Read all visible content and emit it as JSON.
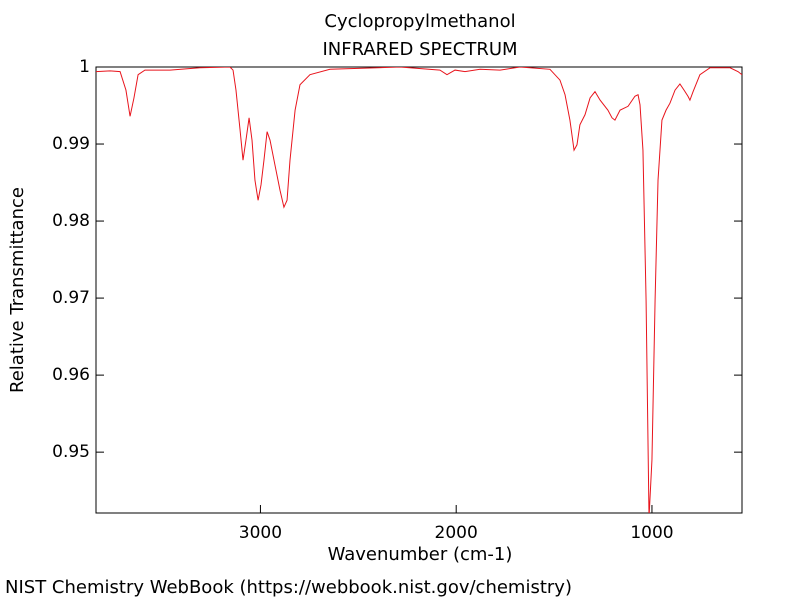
{
  "chart_data": {
    "type": "line",
    "title": "Cyclopropylmethanol",
    "subtitle": "INFRARED SPECTRUM",
    "x_label": "Wavenumber (cm-1)",
    "y_label": "Relative Transmittance",
    "source": "NIST Chemistry WebBook (https://webbook.nist.gov/chemistry)",
    "color": "#e8141c",
    "grid": false,
    "xlim": [
      3840,
      540
    ],
    "ylim": [
      0.9421,
      1
    ],
    "xticks": [
      3000,
      2000,
      1000
    ],
    "yticks": [
      0.95,
      0.96,
      0.97,
      0.98,
      0.99,
      1
    ],
    "x": [
      3840,
      3768,
      3717,
      3687,
      3666,
      3646,
      3625,
      3590,
      3462,
      3309,
      3156,
      3140,
      3125,
      3104,
      3089,
      3074,
      3058,
      3043,
      3028,
      3012,
      2997,
      2982,
      2966,
      2951,
      2926,
      2900,
      2880,
      2864,
      2849,
      2823,
      2798,
      2747,
      2645,
      2287,
      2083,
      2047,
      2006,
      1955,
      1878,
      1776,
      1674,
      1521,
      1470,
      1444,
      1419,
      1398,
      1383,
      1368,
      1342,
      1316,
      1291,
      1265,
      1225,
      1204,
      1189,
      1163,
      1122,
      1087,
      1071,
      1061,
      1046,
      1030,
      1015,
      1000,
      984,
      969,
      949,
      928,
      908,
      882,
      857,
      836,
      816,
      806,
      790,
      755,
      703,
      601,
      560,
      540
    ],
    "values": [
      0.9994,
      0.9995,
      0.9994,
      0.997,
      0.9936,
      0.996,
      0.999,
      0.9996,
      0.9996,
      0.9999,
      1,
      0.9996,
      0.997,
      0.9918,
      0.9879,
      0.9905,
      0.9934,
      0.9905,
      0.9853,
      0.9827,
      0.9847,
      0.9879,
      0.9916,
      0.9905,
      0.9873,
      0.984,
      0.9818,
      0.9827,
      0.9879,
      0.9944,
      0.9977,
      0.999,
      0.9997,
      1,
      0.9996,
      0.999,
      0.9996,
      0.9994,
      0.9997,
      0.9996,
      1,
      0.9997,
      0.9983,
      0.9964,
      0.9931,
      0.9892,
      0.9899,
      0.9925,
      0.9938,
      0.996,
      0.9968,
      0.9957,
      0.9944,
      0.9934,
      0.9931,
      0.9944,
      0.9949,
      0.9962,
      0.9964,
      0.9951,
      0.9892,
      0.9697,
      0.9415,
      0.949,
      0.9697,
      0.9853,
      0.9931,
      0.9944,
      0.9953,
      0.997,
      0.9978,
      0.997,
      0.9962,
      0.9957,
      0.9968,
      0.999,
      0.9999,
      0.9999,
      0.9994,
      0.999
    ]
  }
}
